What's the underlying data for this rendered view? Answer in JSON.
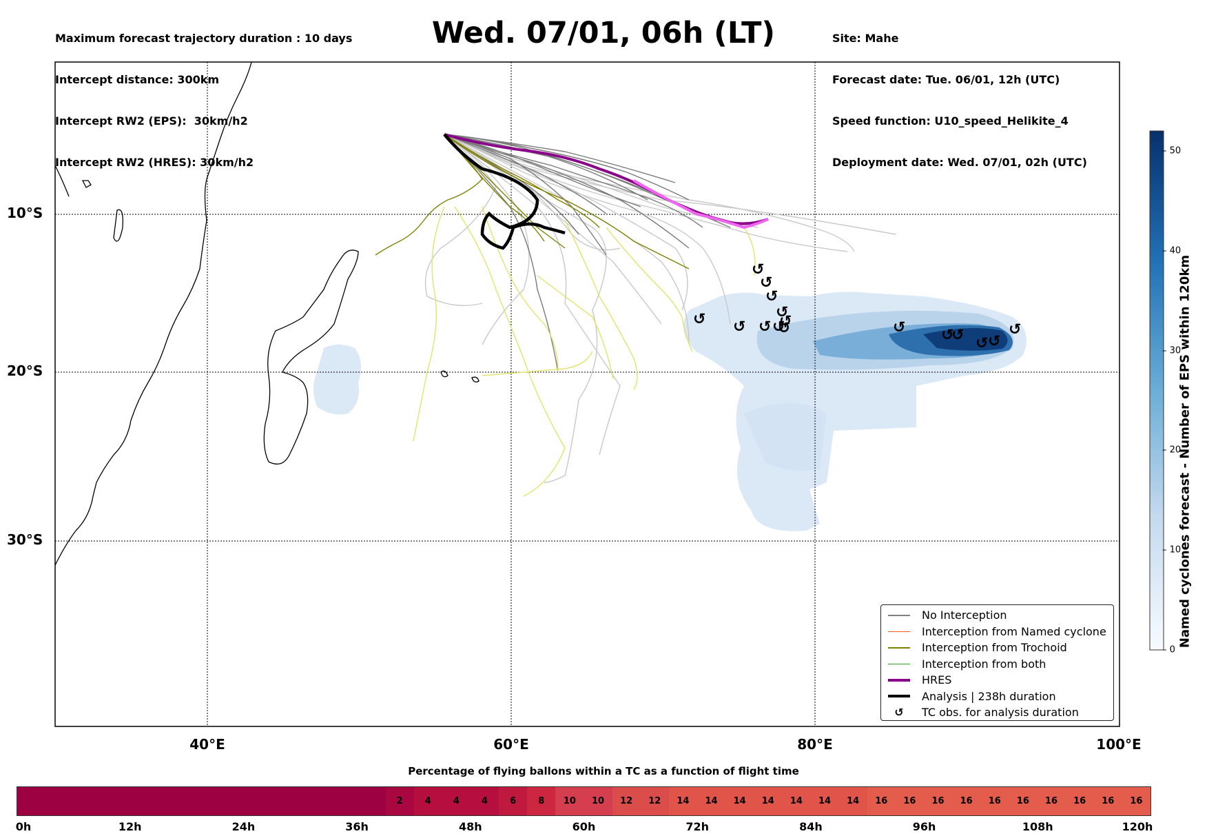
{
  "header_left": {
    "line1": "Maximum forecast trajectory duration : 10 days",
    "line2": "Intercept distance: 300km",
    "line3": "Intercept RW2 (EPS):  30km/h2",
    "line4": "Intercept RW2 (HRES): 30km/h2"
  },
  "title": "Wed. 07/01, 06h (LT)",
  "header_right": {
    "line1": "Site: Mahe",
    "line2": "Forecast date: Tue. 06/01, 12h (UTC)",
    "line3": "Speed function: U10_speed_Helikite_4",
    "line4": "Deployment date: Wed. 07/01, 02h (UTC)"
  },
  "map": {
    "lat_labels": [
      "10°S",
      "20°S",
      "30°S"
    ],
    "lon_labels": [
      "40°E",
      "60°E",
      "80°E",
      "100°E"
    ],
    "launch_site": "Mahe",
    "tc_symbol": "↺"
  },
  "legend": {
    "items": [
      {
        "label": "No Interception",
        "color": "#808080",
        "style": "line-thin"
      },
      {
        "label": "Interception from Named cyclone",
        "color": "#ff5a1e",
        "style": "line-thin"
      },
      {
        "label": "Interception from Trochoid",
        "color": "#808000",
        "style": "line-thin"
      },
      {
        "label": "Interception from both",
        "color": "#2ca02c",
        "style": "line-thin"
      },
      {
        "label": "HRES",
        "color": "#8b008b",
        "style": "line-thick"
      },
      {
        "label": "Analysis | 238h duration",
        "color": "#000000",
        "style": "line-thick"
      },
      {
        "label": "TC obs. for analysis duration",
        "color": "#000000",
        "style": "symbol"
      }
    ]
  },
  "colorbar": {
    "title": "Named cyclones forecast - Number of EPS within 120km",
    "min": 0,
    "max": 52,
    "ticks": [
      "0",
      "10",
      "20",
      "30",
      "40",
      "50"
    ],
    "tick_values": [
      0,
      10,
      20,
      30,
      40,
      50
    ],
    "color_low": "#f7fbff",
    "color_high": "#08306b"
  },
  "bottom_bar": {
    "title": "Percentage of flying ballons within a TC as a function of flight time",
    "hours": [
      0,
      3,
      6,
      9,
      12,
      15,
      18,
      21,
      24,
      27,
      30,
      33,
      36,
      39,
      42,
      45,
      48,
      51,
      54,
      57,
      60,
      63,
      66,
      69,
      72,
      75,
      78,
      81,
      84,
      87,
      90,
      93,
      96,
      99,
      102,
      105,
      108,
      111,
      114,
      117
    ],
    "values": [
      "",
      "",
      "",
      "",
      "",
      "",
      "",
      "",
      "",
      "",
      "",
      "",
      "",
      "2",
      "4",
      "4",
      "4",
      "6",
      "8",
      "10",
      "10",
      "12",
      "12",
      "14",
      "14",
      "14",
      "14",
      "14",
      "14",
      "14",
      "16",
      "16",
      "16",
      "16",
      "16",
      "16",
      "16",
      "16",
      "16",
      "16"
    ],
    "tick_labels": [
      "0h",
      "12h",
      "24h",
      "36h",
      "48h",
      "60h",
      "72h",
      "84h",
      "96h",
      "108h",
      "120h"
    ],
    "tick_hours": [
      0,
      12,
      24,
      36,
      48,
      60,
      72,
      84,
      96,
      108,
      120
    ]
  }
}
